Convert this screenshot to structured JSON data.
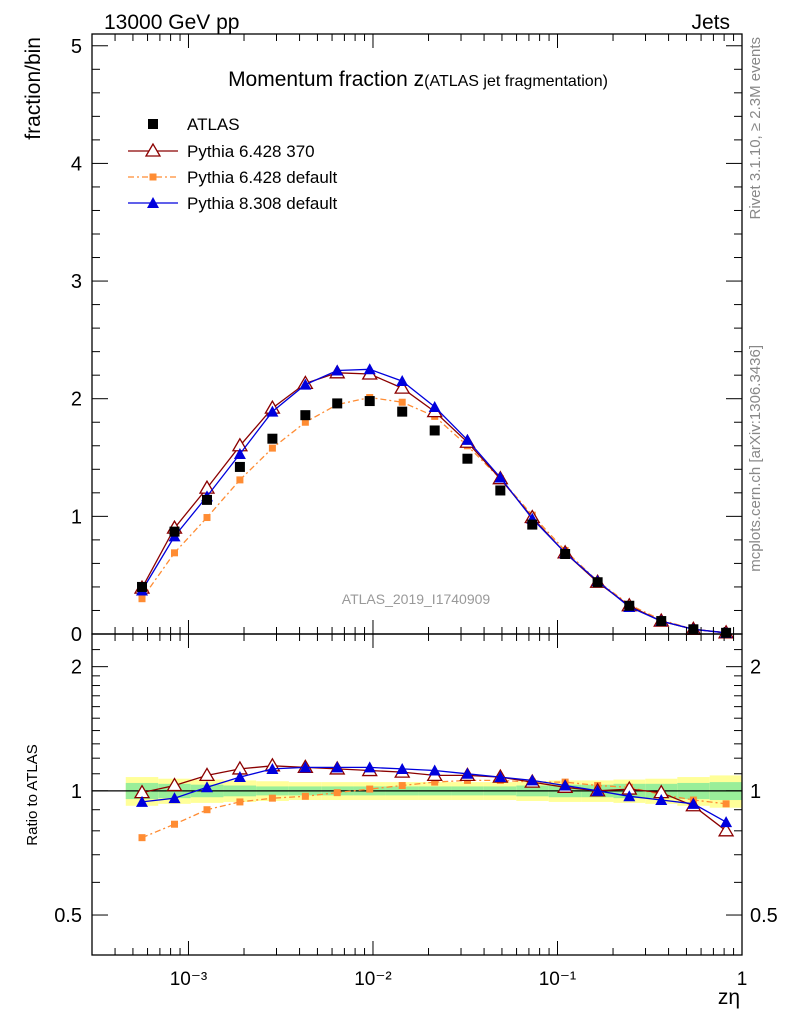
{
  "header": {
    "left": "13000 GeV pp",
    "right": "Jets"
  },
  "side_labels": {
    "rivet": "Rivet 3.1.10, ≥ 2.3M events",
    "mcplots": "mcplots.cern.ch [arXiv:1306.3436]"
  },
  "chart_data": {
    "type": "line",
    "title_main": "Momentum fraction z",
    "title_sub": "(ATLAS jet fragmentation)",
    "watermark": "ATLAS_2019_I1740909",
    "xlabel": "zη",
    "ylabel_top": "fraction/bin",
    "ylabel_bottom": "Ratio to ATLAS",
    "x_scale": "log",
    "xlim": [
      0.0003,
      1
    ],
    "x_ticks": [
      "10⁻³",
      "10⁻²",
      "10⁻¹",
      "1"
    ],
    "top": {
      "ylim": [
        0,
        5.1
      ],
      "y_ticks": [
        "0",
        "1",
        "2",
        "3",
        "4",
        "5"
      ]
    },
    "bottom": {
      "ylim": [
        0.4,
        2.4
      ],
      "y_scale": "log",
      "y_ticks": [
        "0.5",
        "1",
        "2"
      ]
    },
    "legend_position": "top-left",
    "x": [
      0.00056,
      0.00084,
      0.00126,
      0.0019,
      0.00285,
      0.0043,
      0.0064,
      0.0096,
      0.0144,
      0.0216,
      0.0325,
      0.049,
      0.073,
      0.11,
      0.165,
      0.245,
      0.365,
      0.545,
      0.82
    ],
    "series": [
      {
        "name": "ATLAS",
        "color": "#000000",
        "marker": "square",
        "values": [
          0.4,
          0.87,
          1.14,
          1.42,
          1.66,
          1.86,
          1.96,
          1.98,
          1.89,
          1.73,
          1.49,
          1.22,
          0.93,
          0.68,
          0.44,
          0.24,
          0.11,
          0.04,
          0.01
        ],
        "ratio": [
          1,
          1,
          1,
          1,
          1,
          1,
          1,
          1,
          1,
          1,
          1,
          1,
          1,
          1,
          1,
          1,
          1,
          1,
          1
        ]
      },
      {
        "name": "Pythia 6.428 370",
        "color": "#8b0000",
        "marker": "open-triangle",
        "values": [
          0.39,
          0.9,
          1.24,
          1.6,
          1.92,
          2.13,
          2.22,
          2.21,
          2.09,
          1.89,
          1.63,
          1.32,
          0.99,
          0.69,
          0.44,
          0.24,
          0.11,
          0.04,
          0.01
        ],
        "ratio": [
          0.99,
          1.03,
          1.09,
          1.13,
          1.15,
          1.14,
          1.13,
          1.12,
          1.11,
          1.09,
          1.09,
          1.08,
          1.05,
          1.02,
          1.0,
          1.01,
          0.99,
          0.92,
          0.8
        ]
      },
      {
        "name": "Pythia 6.428 default",
        "color": "#ff8c33",
        "marker": "small-square",
        "dashed": true,
        "values": [
          0.3,
          0.69,
          0.99,
          1.31,
          1.58,
          1.8,
          1.95,
          2.01,
          1.97,
          1.85,
          1.6,
          1.32,
          1.01,
          0.71,
          0.45,
          0.25,
          0.12,
          0.04,
          0.01
        ],
        "ratio": [
          0.77,
          0.83,
          0.9,
          0.94,
          0.96,
          0.97,
          0.99,
          1.01,
          1.03,
          1.05,
          1.06,
          1.06,
          1.05,
          1.05,
          1.03,
          1.02,
          0.98,
          0.95,
          0.93
        ]
      },
      {
        "name": "Pythia 8.308 default",
        "color": "#0000dd",
        "marker": "triangle",
        "values": [
          0.37,
          0.83,
          1.17,
          1.53,
          1.89,
          2.12,
          2.24,
          2.25,
          2.15,
          1.93,
          1.65,
          1.33,
          0.98,
          0.69,
          0.45,
          0.23,
          0.11,
          0.04,
          0.01
        ],
        "ratio": [
          0.94,
          0.96,
          1.02,
          1.08,
          1.13,
          1.14,
          1.14,
          1.14,
          1.13,
          1.12,
          1.1,
          1.08,
          1.06,
          1.03,
          1.0,
          0.97,
          0.95,
          0.93,
          0.84
        ]
      }
    ],
    "bands": {
      "yellow": "#ffff99",
      "green": "#99ee99",
      "yellow_half": [
        0.08,
        0.07,
        0.065,
        0.06,
        0.055,
        0.05,
        0.05,
        0.05,
        0.05,
        0.05,
        0.05,
        0.05,
        0.055,
        0.06,
        0.06,
        0.065,
        0.07,
        0.08,
        0.09
      ],
      "green_half": [
        0.045,
        0.04,
        0.035,
        0.03,
        0.025,
        0.025,
        0.025,
        0.025,
        0.025,
        0.025,
        0.025,
        0.025,
        0.03,
        0.035,
        0.035,
        0.04,
        0.04,
        0.045,
        0.05
      ]
    }
  }
}
